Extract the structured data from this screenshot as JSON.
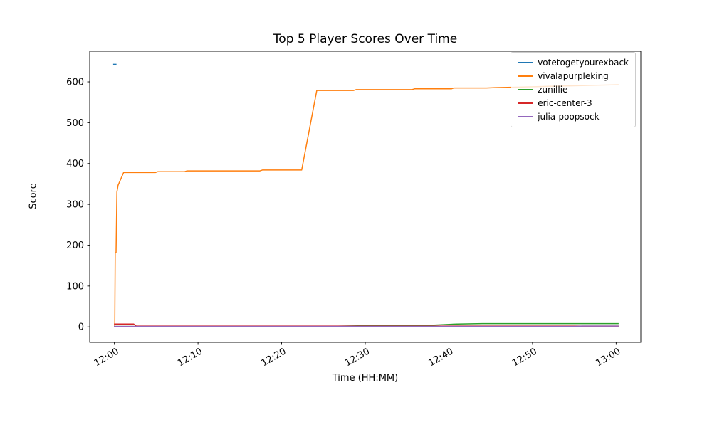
{
  "chart_data": {
    "type": "line",
    "title": "Top 5 Player Scores Over Time",
    "xlabel": "Time (HH:MM)",
    "ylabel": "Score",
    "grid": false,
    "legend_position": "upper-right",
    "frame_color": "#000000",
    "background_color": "#ffffff",
    "x_unit_note": "x values are minutes after 12:00",
    "xlim": [
      -2.95,
      62.95
    ],
    "ylim": [
      -38,
      675
    ],
    "x_ticks": [
      {
        "x": 0,
        "label": "12:00"
      },
      {
        "x": 10,
        "label": "12:10"
      },
      {
        "x": 20,
        "label": "12:20"
      },
      {
        "x": 30,
        "label": "12:30"
      },
      {
        "x": 40,
        "label": "12:40"
      },
      {
        "x": 50,
        "label": "12:50"
      },
      {
        "x": 60,
        "label": "13:00"
      }
    ],
    "y_ticks": [
      {
        "y": 0,
        "label": "0"
      },
      {
        "y": 100,
        "label": "100"
      },
      {
        "y": 200,
        "label": "200"
      },
      {
        "y": 300,
        "label": "300"
      },
      {
        "y": 400,
        "label": "400"
      },
      {
        "y": 500,
        "label": "500"
      },
      {
        "y": 600,
        "label": "600"
      }
    ],
    "series": [
      {
        "name": "votetogetyourexback",
        "color": "#1f77b4",
        "points": [
          [
            -0.15,
            643
          ],
          [
            0.25,
            643
          ]
        ]
      },
      {
        "name": "vivalapurpleking",
        "color": "#ff7f0e",
        "points": [
          [
            0.05,
            0
          ],
          [
            0.1,
            181
          ],
          [
            0.2,
            182
          ],
          [
            0.3,
            330
          ],
          [
            0.45,
            347
          ],
          [
            1.1,
            378
          ],
          [
            4.9,
            378
          ],
          [
            5.2,
            380
          ],
          [
            8.4,
            380
          ],
          [
            8.7,
            382
          ],
          [
            17.4,
            382
          ],
          [
            17.7,
            384
          ],
          [
            22.4,
            384
          ],
          [
            24.2,
            579
          ],
          [
            28.6,
            579
          ],
          [
            28.9,
            581
          ],
          [
            35.6,
            581
          ],
          [
            35.9,
            583
          ],
          [
            40.3,
            583
          ],
          [
            40.6,
            585
          ],
          [
            44.5,
            585
          ],
          [
            45.5,
            586
          ],
          [
            48,
            587
          ],
          [
            52,
            589
          ],
          [
            56,
            591
          ],
          [
            60.3,
            593
          ]
        ]
      },
      {
        "name": "zunillie",
        "color": "#2ca02c",
        "points": [
          [
            -0.05,
            1
          ],
          [
            25,
            1
          ],
          [
            30,
            3
          ],
          [
            38,
            4
          ],
          [
            41,
            7
          ],
          [
            44,
            8
          ],
          [
            48,
            8
          ],
          [
            60.3,
            8
          ]
        ]
      },
      {
        "name": "eric-center-3",
        "color": "#d62728",
        "points": [
          [
            -0.05,
            7
          ],
          [
            2.3,
            7
          ],
          [
            2.6,
            2
          ],
          [
            60.3,
            2
          ]
        ]
      },
      {
        "name": "julia-poopsock",
        "color": "#9467bd",
        "points": [
          [
            -0.05,
            1
          ],
          [
            55,
            1
          ],
          [
            56,
            2
          ],
          [
            60.3,
            2
          ]
        ]
      }
    ]
  }
}
